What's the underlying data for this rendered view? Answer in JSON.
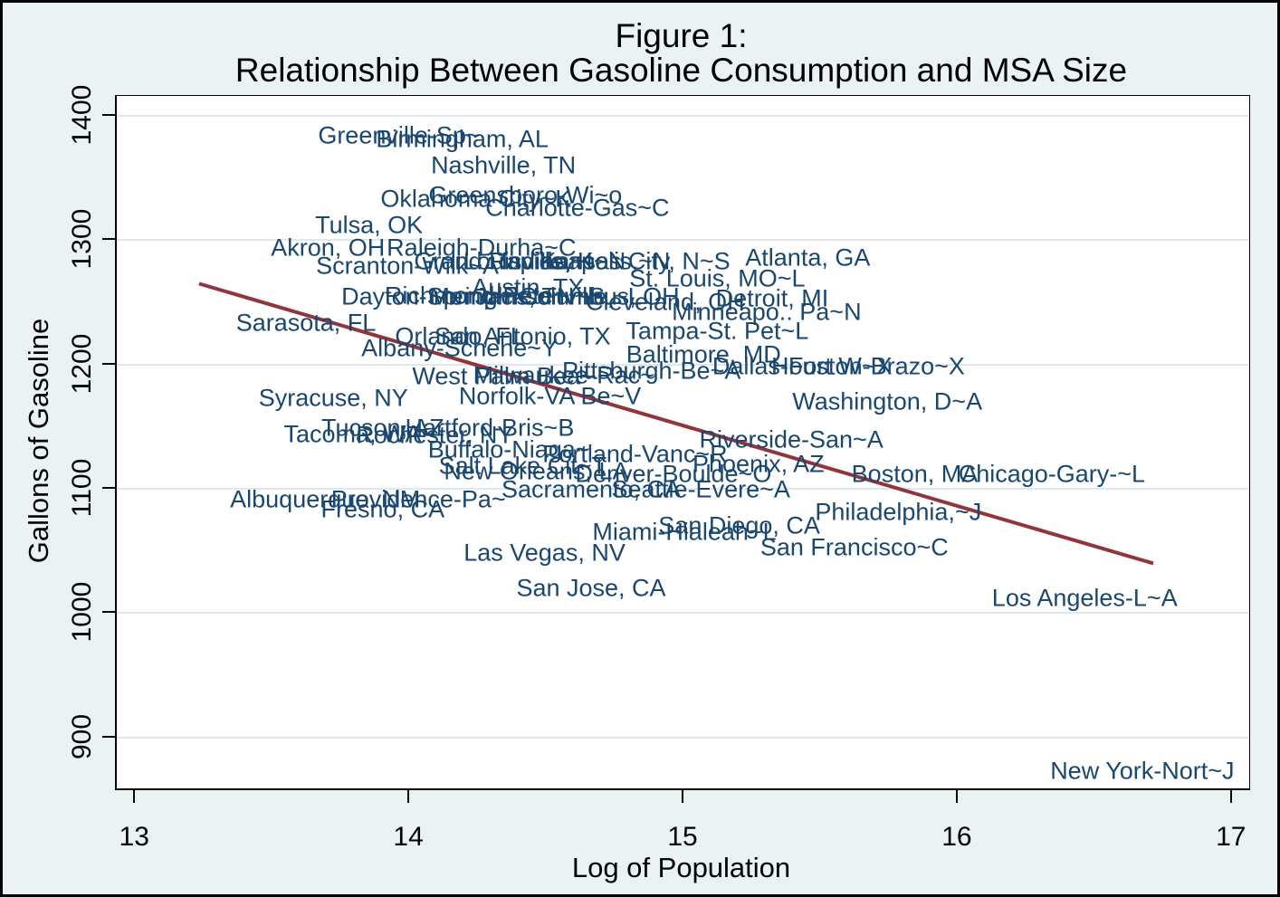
{
  "figure": {
    "title_line1": "Figure 1:",
    "title_line2": "Relationship Between Gasoline Consumption and MSA Size"
  },
  "chart_data": {
    "type": "scatter",
    "title": "Figure 1: Relationship Between Gasoline Consumption and MSA Size",
    "xlabel": "Log of Population",
    "ylabel": "Gallons of Gasoline",
    "xlim": [
      12.93,
      17.06
    ],
    "ylim": [
      859,
      1416
    ],
    "xticks": [
      13,
      14,
      15,
      16,
      17
    ],
    "yticks": [
      900,
      1000,
      1100,
      1200,
      1300,
      1400
    ],
    "grid": "horizontal-gridlines-at-yticks",
    "legend": "none",
    "point_style": "city-name text labels (no marker symbols), navy",
    "points": [
      {
        "label": "Greenville-Sp~",
        "x": 13.96,
        "y": 1384
      },
      {
        "label": "Birmingham, AL",
        "x": 14.19,
        "y": 1381
      },
      {
        "label": "Nashville, TN",
        "x": 14.34,
        "y": 1360
      },
      {
        "label": "Greensboro-Wi~o",
        "x": 14.42,
        "y": 1336
      },
      {
        "label": "Oklahoma City~K",
        "x": 14.24,
        "y": 1333
      },
      {
        "label": "Charlotte-Gas~C",
        "x": 14.61,
        "y": 1326
      },
      {
        "label": "Tulsa, OK",
        "x": 13.85,
        "y": 1312
      },
      {
        "label": "Akron, OH",
        "x": 13.7,
        "y": 1294
      },
      {
        "label": "Raleigh-Durha~C",
        "x": 14.26,
        "y": 1294
      },
      {
        "label": "Scranton-Wilk~A",
        "x": 13.99,
        "y": 1279
      },
      {
        "label": "Grand Rapids,~I",
        "x": 14.34,
        "y": 1283
      },
      {
        "label": "Louisville, K~N",
        "x": 14.49,
        "y": 1283
      },
      {
        "label": "Indianapolis,~N",
        "x": 14.64,
        "y": 1283
      },
      {
        "label": "Kansas City, N~S",
        "x": 14.82,
        "y": 1283
      },
      {
        "label": "Austin, TX",
        "x": 14.43,
        "y": 1262
      },
      {
        "label": "St. Louis, MO~L",
        "x": 15.12,
        "y": 1269
      },
      {
        "label": "Atlanta, GA",
        "x": 15.45,
        "y": 1286
      },
      {
        "label": "Dayton-Spring~",
        "x": 14.06,
        "y": 1254
      },
      {
        "label": "Richmond-Pete~",
        "x": 14.24,
        "y": 1255
      },
      {
        "label": "Memphis, TN~S",
        "x": 14.39,
        "y": 1254
      },
      {
        "label": "Jacksonville,~L",
        "x": 14.54,
        "y": 1254
      },
      {
        "label": "Columbus, OH",
        "x": 14.69,
        "y": 1254
      },
      {
        "label": "Cleveland, OH",
        "x": 14.93,
        "y": 1250
      },
      {
        "label": "Detroit, MI",
        "x": 15.32,
        "y": 1253
      },
      {
        "label": "Minneapo.. Pa~N",
        "x": 15.3,
        "y": 1242
      },
      {
        "label": "Sarasota, FL",
        "x": 13.62,
        "y": 1233
      },
      {
        "label": "Orlando, FL",
        "x": 14.18,
        "y": 1222
      },
      {
        "label": "San Antonio, TX",
        "x": 14.41,
        "y": 1222
      },
      {
        "label": "Tampa-St. Pet~L",
        "x": 15.12,
        "y": 1227
      },
      {
        "label": "Albany-Schene~Y",
        "x": 14.18,
        "y": 1213
      },
      {
        "label": "Baltimore, MD",
        "x": 15.07,
        "y": 1208
      },
      {
        "label": "West Palm Bea~",
        "x": 14.34,
        "y": 1190
      },
      {
        "label": "Milwaukee-Rac~",
        "x": 14.56,
        "y": 1191
      },
      {
        "label": "Pittsburgh-Be~A",
        "x": 14.88,
        "y": 1195
      },
      {
        "label": "Dallas-Fort W~X",
        "x": 15.43,
        "y": 1198
      },
      {
        "label": "Houston-Brazo~X",
        "x": 15.67,
        "y": 1198
      },
      {
        "label": "Washington, D~A",
        "x": 15.74,
        "y": 1170
      },
      {
        "label": "Norfolk-VA Be~V",
        "x": 14.51,
        "y": 1174
      },
      {
        "label": "Syracuse, NY",
        "x": 13.72,
        "y": 1173
      },
      {
        "label": "Tucson, AZ",
        "x": 13.9,
        "y": 1149
      },
      {
        "label": "Hartford-Bris~B",
        "x": 14.29,
        "y": 1149
      },
      {
        "label": "Tacoma, WA",
        "x": 13.79,
        "y": 1144
      },
      {
        "label": "Rochester, NY",
        "x": 14.09,
        "y": 1143
      },
      {
        "label": "Buffalo-Niaga~",
        "x": 14.36,
        "y": 1131
      },
      {
        "label": "Portland-Vanc~R",
        "x": 14.82,
        "y": 1128
      },
      {
        "label": "Riverside-San~A",
        "x": 15.39,
        "y": 1139
      },
      {
        "label": "Phoenix, AZ",
        "x": 15.27,
        "y": 1120
      },
      {
        "label": "Salt Lake Cit~T",
        "x": 14.41,
        "y": 1118
      },
      {
        "label": "New Orleans, LA",
        "x": 14.46,
        "y": 1114
      },
      {
        "label": "Denver-Boulde~O",
        "x": 14.96,
        "y": 1112
      },
      {
        "label": "Sacramento, CA",
        "x": 14.66,
        "y": 1099
      },
      {
        "label": "Seattle-Evere~A",
        "x": 15.06,
        "y": 1099
      },
      {
        "label": "Boston, MA",
        "x": 15.84,
        "y": 1112
      },
      {
        "label": "Chicago-Gary-~L",
        "x": 16.34,
        "y": 1112
      },
      {
        "label": "Albuquerque, NM",
        "x": 13.69,
        "y": 1091
      },
      {
        "label": "Providence-Pa~",
        "x": 14.03,
        "y": 1091
      },
      {
        "label": "Fresno, CA",
        "x": 13.9,
        "y": 1083
      },
      {
        "label": "Philadelphia,~J",
        "x": 15.78,
        "y": 1081
      },
      {
        "label": "Miami-Hialeah~L",
        "x": 15.0,
        "y": 1065
      },
      {
        "label": "San Diego, CA",
        "x": 15.2,
        "y": 1070
      },
      {
        "label": "San Francisco~C",
        "x": 15.62,
        "y": 1053
      },
      {
        "label": "Las Vegas, NV",
        "x": 14.49,
        "y": 1048
      },
      {
        "label": "San Jose, CA",
        "x": 14.66,
        "y": 1020
      },
      {
        "label": "Los Angeles-L~A",
        "x": 16.46,
        "y": 1012
      },
      {
        "label": "New York-Nort~J",
        "x": 16.67,
        "y": 873
      }
    ],
    "fit_line": {
      "x1": 13.23,
      "y1": 1265,
      "x2": 16.71,
      "y2": 1040
    }
  },
  "colors": {
    "background": "#eaf2f3",
    "plot_background": "#ffffff",
    "gridline": "#dde9ee",
    "city_label": "#1a476f",
    "fit_line": "#90353b",
    "axis": "#000000",
    "frame": "#000000"
  }
}
